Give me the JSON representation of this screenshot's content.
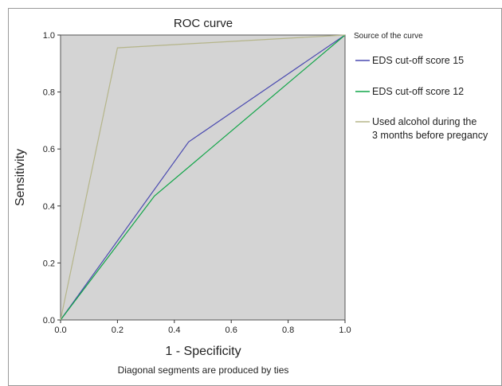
{
  "chart_data": {
    "type": "line",
    "title": "ROC curve",
    "xlabel": "1 - Specificity",
    "ylabel": "Sensitivity",
    "footnote": "Diagonal segments are produced by ties",
    "xlim": [
      0.0,
      1.0
    ],
    "ylim": [
      0.0,
      1.0
    ],
    "xticks": [
      0.0,
      0.2,
      0.4,
      0.6,
      0.8,
      1.0
    ],
    "yticks": [
      0.0,
      0.2,
      0.4,
      0.6,
      0.8,
      1.0
    ],
    "xtick_labels": [
      "0.0",
      "0.2",
      "0.4",
      "0.6",
      "0.8",
      "1.0"
    ],
    "ytick_labels": [
      "0.0",
      "0.2",
      "0.4",
      "0.6",
      "0.8",
      "1.0"
    ],
    "grid": false,
    "plot_background": "#d4d4d4",
    "legend_title": "Source of the curve",
    "legend_position": "right",
    "series": [
      {
        "name": "EDS cut-off score 15",
        "color": "#4a4ab0",
        "points": [
          [
            0.0,
            0.0
          ],
          [
            0.45,
            0.625
          ],
          [
            1.0,
            1.0
          ]
        ]
      },
      {
        "name": "EDS cut-off score 12",
        "color": "#11a548",
        "points": [
          [
            0.0,
            0.0
          ],
          [
            0.33,
            0.435
          ],
          [
            1.0,
            1.0
          ]
        ]
      },
      {
        "name_lines": [
          "Used alcohol during the",
          "3 months before pregancy"
        ],
        "color": "#b5b58a",
        "points": [
          [
            0.0,
            0.0
          ],
          [
            0.2,
            0.955
          ],
          [
            1.0,
            1.0
          ]
        ]
      }
    ]
  }
}
